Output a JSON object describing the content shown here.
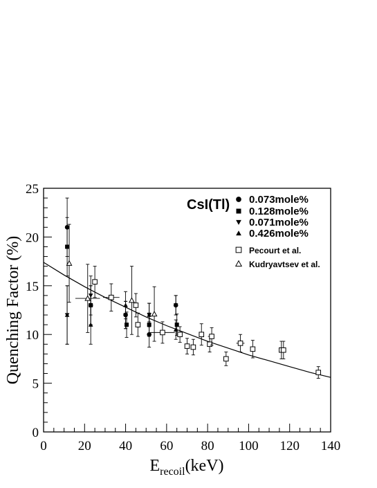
{
  "chart_data": {
    "type": "scatter",
    "title": "",
    "xlabel": "E",
    "xlabel_sub": "recoil",
    "xlabel_unit": "(keV)",
    "ylabel": "Quenching Factor (%)",
    "xlim": [
      0,
      140
    ],
    "ylim": [
      0,
      25
    ],
    "x_ticks": [
      "0",
      "20",
      "40",
      "60",
      "80",
      "100",
      "120",
      "140"
    ],
    "y_ticks": [
      "0",
      "5",
      "10",
      "15",
      "20",
      "25"
    ],
    "legend_title": "CsI(Tl)",
    "legend_position": "top-right",
    "series": [
      {
        "name": "0.073mole%",
        "marker": "circle",
        "points": [
          {
            "x": 11.5,
            "y": 21.0,
            "yerr": 3.0
          },
          {
            "x": 23.0,
            "y": 13.0,
            "yerr": 2.0
          },
          {
            "x": 40.0,
            "y": 12.0,
            "yerr": 1.4
          },
          {
            "x": 51.5,
            "y": 10.0,
            "yerr": 1.3
          },
          {
            "x": 64.5,
            "y": 13.0,
            "yerr": 1.0
          }
        ]
      },
      {
        "name": "0.128mole%",
        "marker": "square",
        "points": [
          {
            "x": 11.5,
            "y": 19.0,
            "yerr": 3.0
          },
          {
            "x": 23.0,
            "y": 13.0,
            "yerr": 2.0
          },
          {
            "x": 40.5,
            "y": 11.0,
            "yerr": 1.3
          },
          {
            "x": 51.5,
            "y": 11.0,
            "yerr": 1.2
          },
          {
            "x": 65.0,
            "y": 11.0,
            "yerr": 1.1
          }
        ]
      },
      {
        "name": "0.071mole%",
        "marker": "triangle-down",
        "points": [
          {
            "x": 11.5,
            "y": 12.0,
            "yerr": 3.0
          },
          {
            "x": 23.0,
            "y": 14.0,
            "yerr": 2.0
          },
          {
            "x": 40.0,
            "y": 12.0,
            "yerr": 1.4
          },
          {
            "x": 51.5,
            "y": 12.0,
            "yerr": 1.2
          },
          {
            "x": 64.5,
            "y": 13.0,
            "yerr": 1.0
          }
        ]
      },
      {
        "name": "0.426mole%",
        "marker": "triangle-up",
        "points": [
          {
            "x": 11.5,
            "y": 12.0,
            "yerr": 3.0
          },
          {
            "x": 23.0,
            "y": 11.0,
            "yerr": 2.0
          },
          {
            "x": 40.0,
            "y": 13.0,
            "yerr": 1.4
          },
          {
            "x": 51.5,
            "y": 12.0,
            "yerr": 1.2
          },
          {
            "x": 64.5,
            "y": 10.5,
            "yerr": 1.0
          }
        ]
      },
      {
        "name": "Pecourt et al.",
        "marker": "open-square",
        "points": [
          {
            "x": 25.0,
            "y": 15.4,
            "yerr": 1.6
          },
          {
            "x": 33.0,
            "y": 13.8,
            "yerr": 1.4,
            "xerr": 4.0
          },
          {
            "x": 45.0,
            "y": 13.0,
            "yerr": 1.2
          },
          {
            "x": 46.0,
            "y": 11.0,
            "yerr": 1.2
          },
          {
            "x": 58.0,
            "y": 10.2,
            "yerr": 1.1,
            "xerr": 6.0
          },
          {
            "x": 66.5,
            "y": 10.0,
            "yerr": 0.8
          },
          {
            "x": 70.0,
            "y": 8.8,
            "yerr": 0.8
          },
          {
            "x": 73.0,
            "y": 8.7,
            "yerr": 0.8
          },
          {
            "x": 77.0,
            "y": 10.0,
            "yerr": 1.1
          },
          {
            "x": 81.0,
            "y": 9.0,
            "yerr": 0.8
          },
          {
            "x": 82.0,
            "y": 9.8,
            "yerr": 0.9
          },
          {
            "x": 89.0,
            "y": 7.5,
            "yerr": 0.7
          },
          {
            "x": 96.0,
            "y": 9.1,
            "yerr": 0.9,
            "xerr": 2.0
          },
          {
            "x": 102.0,
            "y": 8.5,
            "yerr": 0.9
          },
          {
            "x": 116.0,
            "y": 8.4,
            "yerr": 0.9
          },
          {
            "x": 117.0,
            "y": 8.4,
            "yerr": 0.9
          },
          {
            "x": 134.0,
            "y": 6.1,
            "yerr": 0.6
          }
        ]
      },
      {
        "name": "Kudryavtsev et al.",
        "marker": "open-triangle",
        "points": [
          {
            "x": 12.5,
            "y": 17.3,
            "yerr": 4.0
          },
          {
            "x": 21.5,
            "y": 13.7,
            "yerr": 3.5,
            "xerr": 6.0
          },
          {
            "x": 43.0,
            "y": 13.5,
            "yerr": 3.5
          },
          {
            "x": 54.0,
            "y": 12.1,
            "yerr": 2.8
          }
        ]
      }
    ],
    "fit_curve": {
      "x": [
        0,
        10,
        20,
        30,
        40,
        50,
        60,
        70,
        80,
        90,
        100,
        110,
        120,
        130,
        140
      ],
      "y": [
        17.4,
        16.1,
        14.9,
        13.8,
        12.8,
        11.8,
        10.9,
        10.1,
        9.3,
        8.6,
        7.9,
        7.3,
        6.7,
        6.1,
        5.6
      ]
    }
  }
}
